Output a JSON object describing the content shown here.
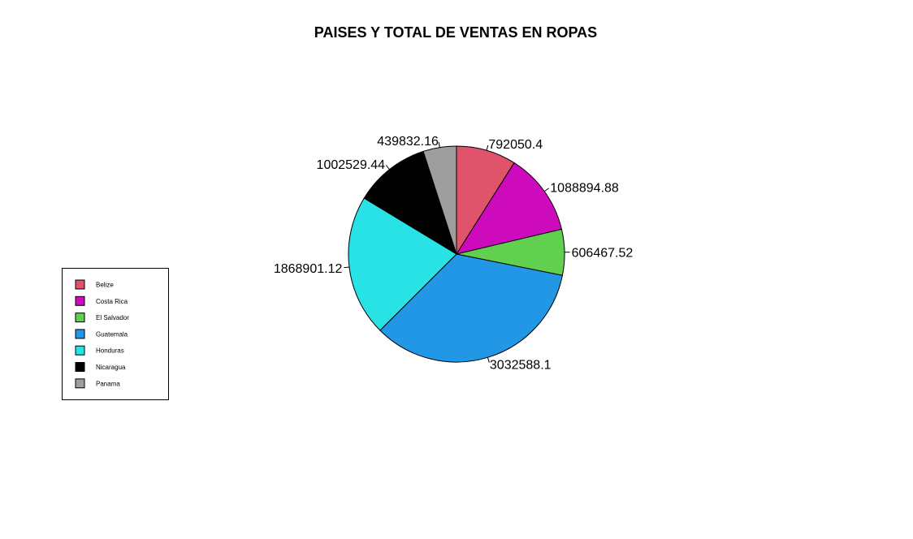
{
  "chart_data": {
    "type": "pie",
    "title": "PAISES Y TOTAL DE VENTAS EN ROPAS",
    "categories": [
      "Belize",
      "Costa Rica",
      "El Salvador",
      "Guatemala",
      "Honduras",
      "Nicaragua",
      "Panama"
    ],
    "values": [
      792050.4,
      1088894.88,
      606467.52,
      3032588.1,
      1868901.12,
      1002529.44,
      439832.16
    ],
    "value_labels": [
      "792050.4",
      "1088894.88",
      "606467.52",
      "3032588.1",
      "1868901.12",
      "1002529.44",
      "439832.16"
    ],
    "colors": [
      "#DF536B",
      "#CD0BBC",
      "#61D04F",
      "#2297E6",
      "#28E2E5",
      "#000000",
      "#9E9E9E"
    ],
    "start_angle_deg": 90,
    "direction": "clockwise",
    "legend_position": "left",
    "legend_entries": [
      "Belize",
      "Costa Rica",
      "El Salvador",
      "Guatemala",
      "Honduras",
      "Nicaragua",
      "Panama"
    ]
  }
}
